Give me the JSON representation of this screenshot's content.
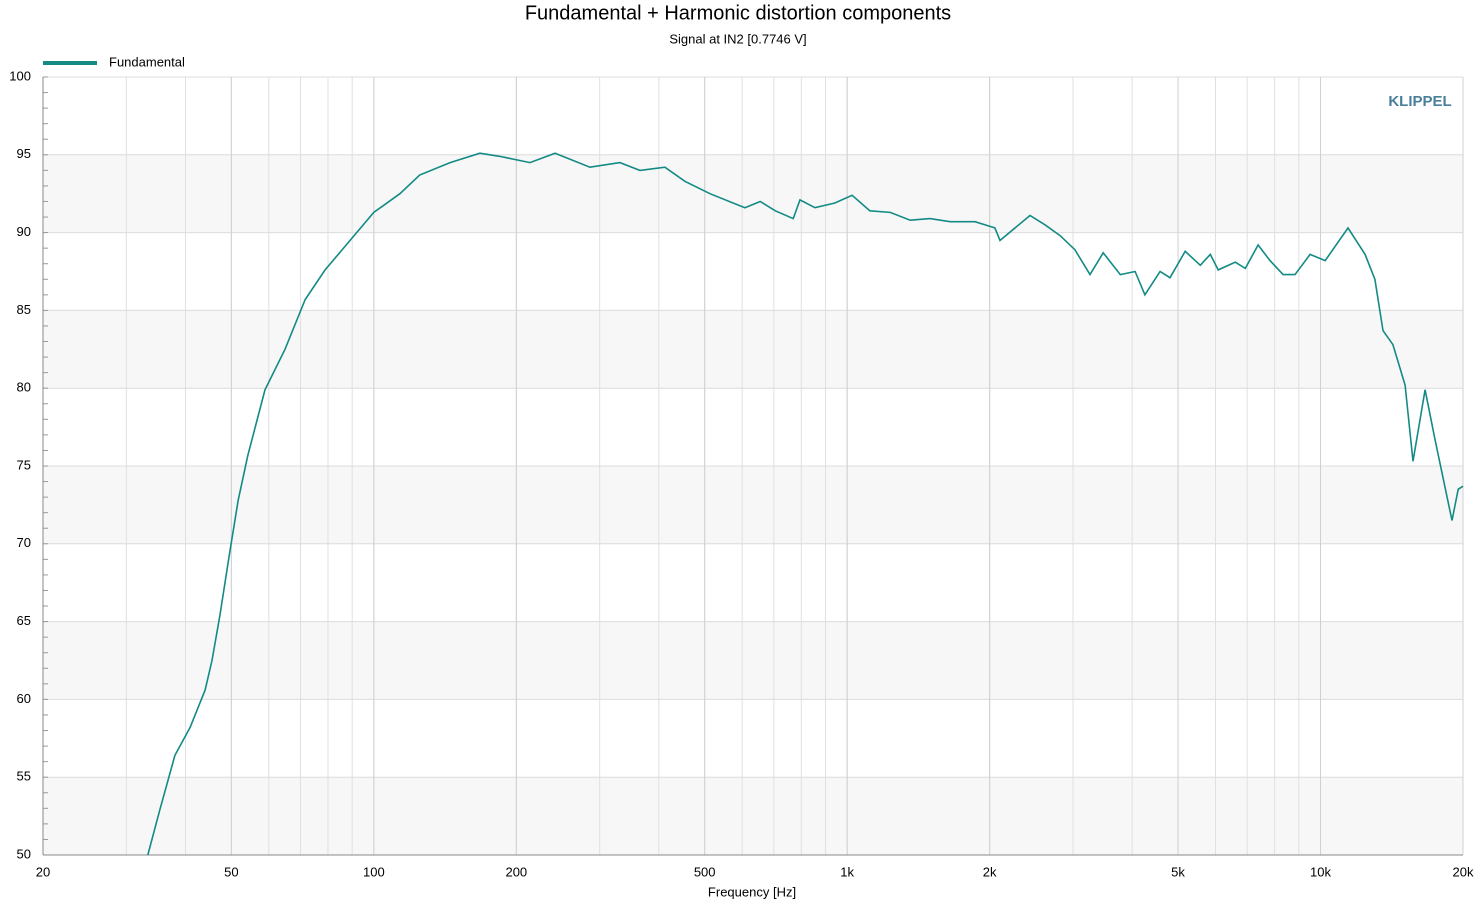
{
  "chart_data": {
    "type": "line",
    "title": "Fundamental + Harmonic distortion components",
    "subtitle": "Signal at IN2 [0.7746 V]",
    "x_label": "Frequency [Hz]",
    "logo": "KLIPPEL",
    "x_log": true,
    "grid": true,
    "legend": "top-left",
    "x": [
      33.3,
      35.3,
      38.0,
      40.9,
      44.0,
      45.5,
      47.3,
      49.7,
      51.7,
      54.2,
      58.9,
      64.9,
      71.6,
      78.9,
      89.1,
      100,
      113.5,
      125,
      144.9,
      167.5,
      184.8,
      213.8,
      241.5,
      286,
      331,
      365,
      412,
      454,
      513,
      608,
      655,
      705,
      769,
      795,
      855,
      942,
      1024,
      1117,
      1233,
      1359,
      1497,
      1649,
      1862,
      2052,
      2103,
      2434,
      2618,
      2818,
      3028,
      3258,
      3475,
      3776,
      4058,
      4256,
      4583,
      4809,
      5177,
      5572,
      5849,
      6080,
      6608,
      6935,
      7382,
      7820,
      8335,
      8833,
      9506,
      10230,
      11430,
      12420,
      13030,
      13550,
      14220,
      15090,
      15680,
      16630,
      17450,
      18960,
      19540,
      20000
    ],
    "series": [
      {
        "name": "Fundamental",
        "color": "#138a84",
        "values": [
          50,
          52.9,
          56.4,
          58.2,
          60.6,
          62.5,
          65.4,
          69.6,
          72.8,
          75.7,
          79.9,
          82.5,
          85.7,
          87.6,
          89.5,
          91.3,
          92.5,
          93.7,
          94.5,
          95.1,
          94.9,
          94.5,
          95.1,
          94.2,
          94.5,
          94.0,
          94.2,
          93.3,
          92.5,
          91.6,
          92.0,
          91.4,
          90.9,
          92.1,
          91.6,
          91.9,
          92.4,
          91.4,
          91.3,
          90.8,
          90.9,
          90.7,
          90.7,
          90.3,
          89.5,
          91.1,
          90.5,
          89.8,
          88.9,
          87.3,
          88.7,
          87.3,
          87.5,
          86.0,
          87.5,
          87.1,
          88.8,
          87.9,
          88.6,
          87.6,
          88.1,
          87.7,
          89.2,
          88.2,
          87.3,
          87.3,
          88.6,
          88.2,
          90.3,
          88.6,
          87.0,
          83.7,
          82.8,
          80.2,
          75.3,
          79.9,
          76.7,
          71.5,
          73.5,
          73.7
        ]
      }
    ],
    "xlim": [
      20,
      20000
    ],
    "xticks": [
      20,
      50,
      100,
      200,
      500,
      {
        "value": 1000,
        "label": "1k"
      },
      {
        "value": 2000,
        "label": "2k"
      },
      {
        "value": 5000,
        "label": "5k"
      },
      {
        "value": 10000,
        "label": "10k"
      },
      {
        "value": 20000,
        "label": "20k"
      }
    ],
    "ylim": [
      50,
      100
    ],
    "yticks": [
      50,
      55,
      60,
      65,
      70,
      75,
      80,
      85,
      90,
      95,
      100
    ]
  }
}
